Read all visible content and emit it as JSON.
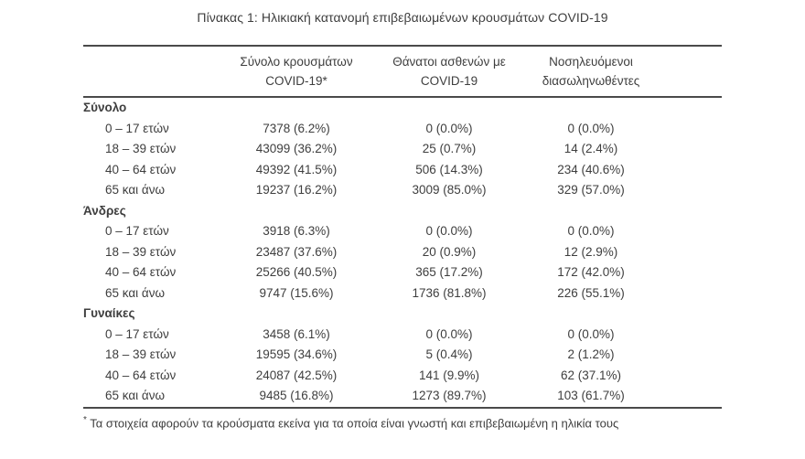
{
  "title": "Πίνακας 1: Ηλικιακή κατανομή επιβεβαιωμένων κρουσμάτων COVID-19",
  "table": {
    "columns": [
      {
        "line1": "Σύνολο κρουσμάτων",
        "line2": "COVID-19*"
      },
      {
        "line1": "Θάνατοι ασθενών με",
        "line2": "COVID-19"
      },
      {
        "line1": "Νοσηλευόμενοι",
        "line2": "διασωληνωθέντες"
      }
    ],
    "sections": [
      {
        "name": "Σύνολο",
        "rows": [
          {
            "age": "0 – 17 ετών",
            "cases": "7378 (6.2%)",
            "deaths": "0 (0.0%)",
            "intubated": "0 (0.0%)"
          },
          {
            "age": "18 – 39 ετών",
            "cases": "43099 (36.2%)",
            "deaths": "25 (0.7%)",
            "intubated": "14 (2.4%)"
          },
          {
            "age": "40 – 64 ετών",
            "cases": "49392 (41.5%)",
            "deaths": "506 (14.3%)",
            "intubated": "234 (40.6%)"
          },
          {
            "age": "65 και άνω",
            "cases": "19237 (16.2%)",
            "deaths": "3009 (85.0%)",
            "intubated": "329 (57.0%)"
          }
        ]
      },
      {
        "name": "Άνδρες",
        "rows": [
          {
            "age": "0 – 17 ετών",
            "cases": "3918 (6.3%)",
            "deaths": "0 (0.0%)",
            "intubated": "0 (0.0%)"
          },
          {
            "age": "18 – 39 ετών",
            "cases": "23487 (37.6%)",
            "deaths": "20 (0.9%)",
            "intubated": "12 (2.9%)"
          },
          {
            "age": "40 – 64 ετών",
            "cases": "25266 (40.5%)",
            "deaths": "365 (17.2%)",
            "intubated": "172 (42.0%)"
          },
          {
            "age": "65 και άνω",
            "cases": "9747 (15.6%)",
            "deaths": "1736 (81.8%)",
            "intubated": "226 (55.1%)"
          }
        ]
      },
      {
        "name": "Γυναίκες",
        "rows": [
          {
            "age": "0 – 17 ετών",
            "cases": "3458 (6.1%)",
            "deaths": "0 (0.0%)",
            "intubated": "0 (0.0%)"
          },
          {
            "age": "18 – 39 ετών",
            "cases": "19595 (34.6%)",
            "deaths": "5 (0.4%)",
            "intubated": "2 (1.2%)"
          },
          {
            "age": "40 – 64 ετών",
            "cases": "24087 (42.5%)",
            "deaths": "141 (9.9%)",
            "intubated": "62 (37.1%)"
          },
          {
            "age": "65 και άνω",
            "cases": "9485 (16.8%)",
            "deaths": "1273 (89.7%)",
            "intubated": "103 (61.7%)"
          }
        ]
      }
    ]
  },
  "footnote": {
    "marker": "*",
    "text": "Τα στοιχεία αφορούν τα κρούσματα εκείνα για τα οποία είναι γνωστή και επιβεβαιωμένη η ηλικία τους"
  }
}
